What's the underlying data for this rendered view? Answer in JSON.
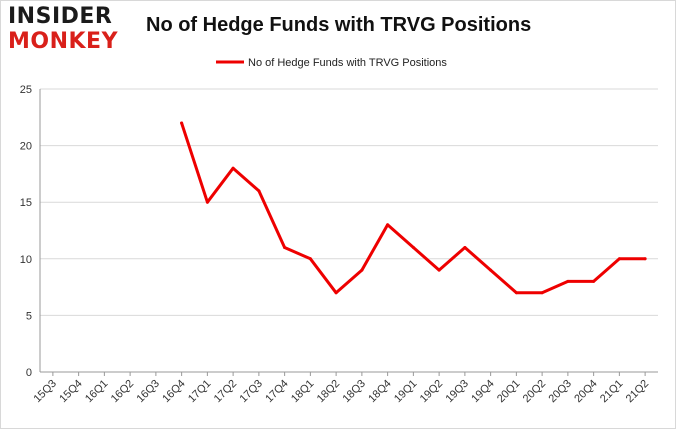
{
  "logo": {
    "line1": "INSIDER",
    "line2": "MONKEY"
  },
  "chart_data": {
    "type": "line",
    "title": "No of Hedge Funds with TRVG Positions",
    "categories": [
      "15Q3",
      "15Q4",
      "16Q1",
      "16Q2",
      "16Q3",
      "16Q4",
      "17Q1",
      "17Q2",
      "17Q3",
      "17Q4",
      "18Q1",
      "18Q2",
      "18Q3",
      "18Q4",
      "19Q1",
      "19Q2",
      "19Q3",
      "19Q4",
      "20Q1",
      "20Q2",
      "20Q3",
      "20Q4",
      "21Q1",
      "21Q2"
    ],
    "series": [
      {
        "name": "No of Hedge Funds with TRVG Positions",
        "color": "#ee0000",
        "values": [
          null,
          null,
          null,
          null,
          null,
          22,
          15,
          18,
          16,
          11,
          10,
          7,
          9,
          13,
          11,
          9,
          11,
          9,
          7,
          7,
          8,
          8,
          10,
          10
        ]
      }
    ],
    "ylim": [
      0,
      25
    ],
    "yticks": [
      0,
      5,
      10,
      15,
      20,
      25
    ],
    "grid": true,
    "legend": "top-center"
  }
}
